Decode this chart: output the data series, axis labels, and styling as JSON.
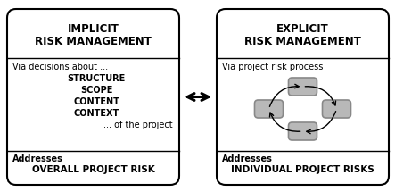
{
  "left_title_line1": "IMPLICIT",
  "left_title_line2": "RISK MANAGEMENT",
  "left_body_header": "Via decisions about ...",
  "left_body_items": [
    "STRUCTURE",
    "SCOPE",
    "CONTENT",
    "CONTEXT"
  ],
  "left_body_tail": "... of the project",
  "left_footer_label": "Addresses",
  "left_footer_text": "OVERALL PROJECT RISK",
  "right_title_line1": "EXPLICIT",
  "right_title_line2": "RISK MANAGEMENT",
  "right_body_header": "Via project risk process",
  "right_footer_label": "Addresses",
  "right_footer_text": "INDIVIDUAL PROJECT RISKS",
  "bg_color": "#ffffff",
  "box_facecolor": "#ffffff",
  "box_edgecolor": "#000000",
  "small_box_facecolor": "#b8b8b8",
  "small_box_edgecolor": "#888888",
  "title_fontsize": 8.5,
  "body_fontsize": 7.0,
  "footer_label_fontsize": 7.0,
  "footer_text_fontsize": 7.5
}
